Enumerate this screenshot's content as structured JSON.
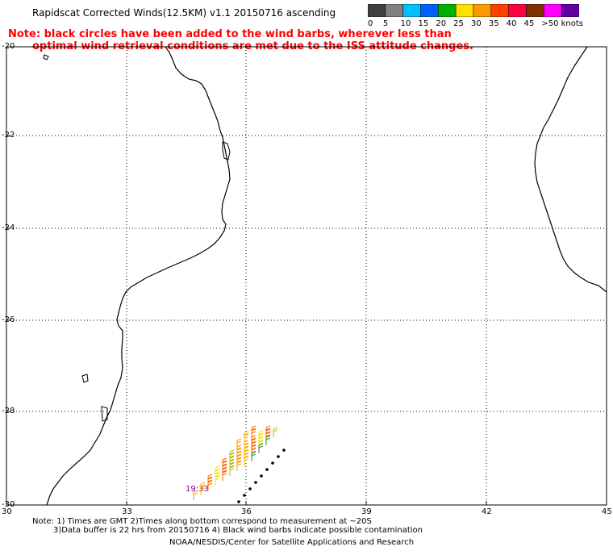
{
  "header": {
    "title": "Rapidscat Corrected Winds(12.5KM) v1.1 20150716 ascending",
    "note_line1": "Note: black circles have been added to the wind barbs, wherever less than",
    "note_line2": "optimal wind retrieval conditions are met due to the ISS attitude changes."
  },
  "colorbar": {
    "labels": [
      "0",
      "5",
      "10",
      "15",
      "20",
      "25",
      "30",
      "35",
      "40",
      "45",
      ">50 knots"
    ],
    "colors": [
      "#404040",
      "#808080",
      "#00c0ff",
      "#0060ff",
      "#00b000",
      "#ffe000",
      "#ff9900",
      "#ff4000",
      "#ff0040",
      "#803000",
      "#ff00ff",
      "#6000a0"
    ]
  },
  "map": {
    "lat_labels": [
      "-20",
      "-22",
      "-24",
      "-26",
      "-28",
      "-30"
    ],
    "lon_labels": [
      "30",
      "33",
      "36",
      "39",
      "42",
      "45"
    ],
    "time_label": "19:33",
    "time_color": "#800080"
  },
  "footer": {
    "line1": "Note: 1) Times are GMT 2)Times along bottom correspond to measurement at ~20S",
    "line2": "3)Data buffer is 22 hrs from 20150716 4) Black wind barbs indicate possible contamination",
    "credit": "NOAA/NESDIS/Center for Satellite Applications and Research"
  }
}
